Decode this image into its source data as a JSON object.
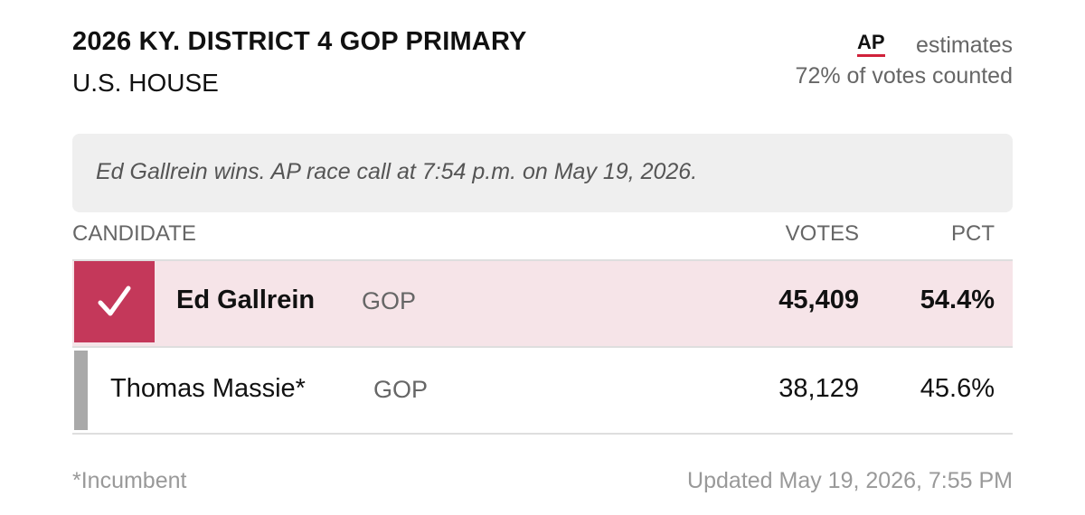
{
  "header": {
    "title": "2026 KY. DISTRICT 4 GOP PRIMARY",
    "subtitle": "U.S. HOUSE",
    "source": "AP",
    "source_label": "estimates",
    "counted": "72% of votes counted"
  },
  "race_call": "Ed Gallrein wins. AP race call at 7:54 p.m. on May 19, 2026.",
  "table": {
    "columns": [
      "CANDIDATE",
      "VOTES",
      "PCT"
    ],
    "rows": [
      {
        "name": "Ed Gallrein",
        "party": "GOP",
        "votes": "45,409",
        "pct": "54.4%",
        "winner": true
      },
      {
        "name": "Thomas Massie*",
        "party": "GOP",
        "votes": "38,129",
        "pct": "45.6%",
        "winner": false
      }
    ]
  },
  "footer": {
    "note": "*Incumbent",
    "updated": "Updated May 19, 2026, 7:55 PM"
  }
}
